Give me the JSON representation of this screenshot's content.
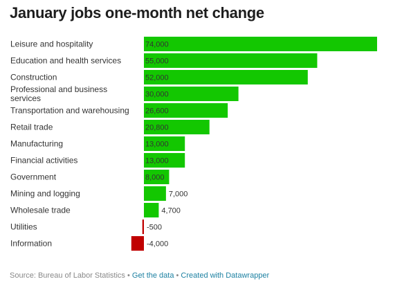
{
  "chart_data": {
    "type": "bar",
    "orientation": "horizontal",
    "title": "January jobs one-month net change",
    "categories": [
      "Leisure and hospitality",
      "Education and health services",
      "Construction",
      "Professional and business services",
      "Transportation and warehousing",
      "Retail trade",
      "Manufacturing",
      "Financial activities",
      "Government",
      "Mining and logging",
      "Wholesale trade",
      "Utilities",
      "Information"
    ],
    "values": [
      74000,
      55000,
      52000,
      30000,
      26600,
      20800,
      13000,
      13000,
      8000,
      7000,
      4700,
      -500,
      -4000
    ],
    "value_labels": [
      "74,000",
      "55,000",
      "52,000",
      "30,000",
      "26,600",
      "20,800",
      "13,000",
      "13,000",
      "8,000",
      "7,000",
      "4,700",
      "-500",
      "-4,000"
    ],
    "colors": {
      "positive": "#13c701",
      "negative": "#c00000",
      "label_inside": "#333333",
      "label_outside": "#333333"
    },
    "grid": false,
    "legend": "none"
  },
  "footer": {
    "source": "Source: Bureau of Labor Statistics",
    "separator": " • ",
    "get_data": "Get the data",
    "created_with": "Created with Datawrapper"
  }
}
